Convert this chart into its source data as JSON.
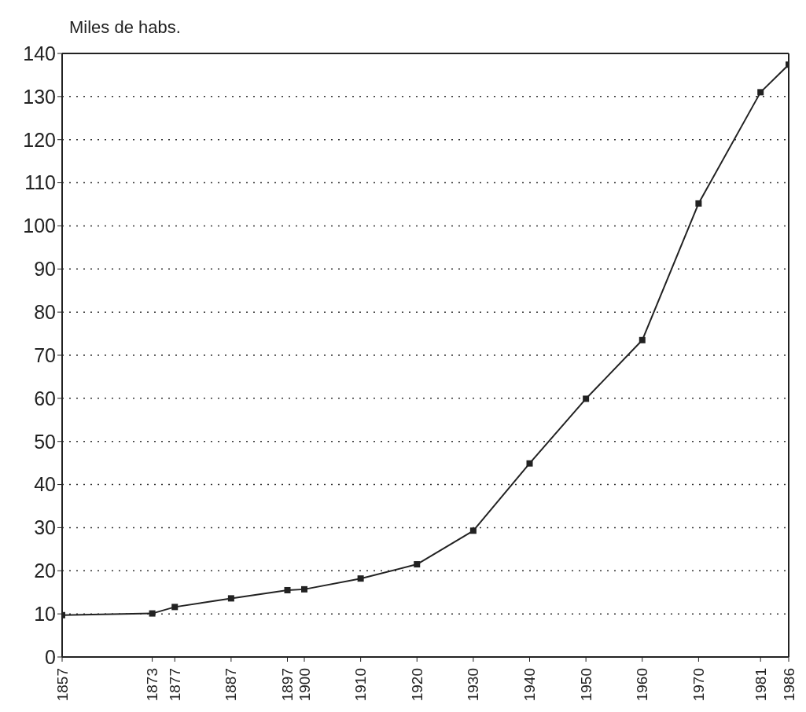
{
  "chart_data": {
    "type": "line",
    "ylabel": "Miles de habs.",
    "x": [
      1857,
      1873,
      1877,
      1887,
      1897,
      1900,
      1910,
      1920,
      1930,
      1940,
      1950,
      1960,
      1970,
      1981,
      1986
    ],
    "series": [
      {
        "color": "#222222",
        "values": [
          9.7,
          10.1,
          11.6,
          13.6,
          15.5,
          15.7,
          18.2,
          21.5,
          29.3,
          44.9,
          59.9,
          73.5,
          105.2,
          131,
          137.4
        ]
      }
    ],
    "xlim": [
      1857,
      1986
    ],
    "xticks": [
      1857,
      1873,
      1877,
      1887,
      1897,
      1900,
      1910,
      1920,
      1930,
      1940,
      1950,
      1960,
      1970,
      1981,
      1986
    ],
    "ylim": [
      0,
      140
    ],
    "yticks": [
      0,
      10,
      20,
      30,
      40,
      50,
      60,
      70,
      80,
      90,
      100,
      110,
      120,
      130,
      140
    ],
    "grid": "y",
    "marker": "square",
    "line_style": "solid"
  }
}
